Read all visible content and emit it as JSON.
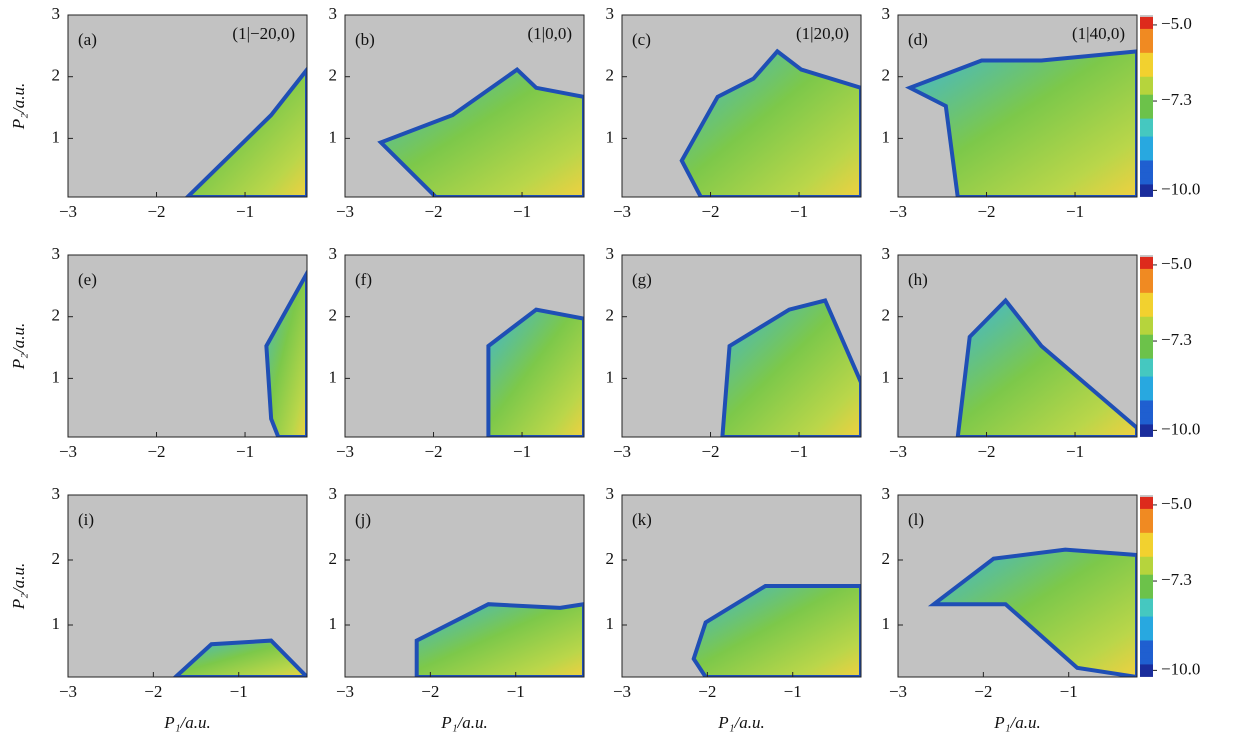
{
  "chart_data": [
    {
      "type": "heatmap",
      "panel_label": "(a)",
      "annotation": "(1|−20,0)",
      "ylabel": "P₂/a.u.",
      "xlim": [
        -3,
        -0.3
      ],
      "ylim": [
        0.05,
        3
      ],
      "xticks": [
        {
          "value": -3,
          "label": "−3"
        },
        {
          "value": -2,
          "label": "−2"
        },
        {
          "value": -1,
          "label": "−1"
        }
      ],
      "yticks": [
        1,
        2,
        3
      ]
    },
    {
      "type": "heatmap",
      "panel_label": "(b)",
      "annotation": "(1|0,0)",
      "xlim": [
        -3,
        -0.3
      ],
      "ylim": [
        0.05,
        3
      ],
      "xticks": [
        {
          "value": -3,
          "label": "−3"
        },
        {
          "value": -2,
          "label": "−2"
        },
        {
          "value": -1,
          "label": "−1"
        }
      ],
      "yticks": [
        1,
        2,
        3
      ]
    },
    {
      "type": "heatmap",
      "panel_label": "(c)",
      "annotation": "(1|20,0)",
      "xlim": [
        -3,
        -0.3
      ],
      "ylim": [
        0.05,
        3
      ],
      "xticks": [
        {
          "value": -3,
          "label": "−3"
        },
        {
          "value": -2,
          "label": "−2"
        },
        {
          "value": -1,
          "label": "−1"
        }
      ],
      "yticks": [
        1,
        2,
        3
      ]
    },
    {
      "type": "heatmap",
      "panel_label": "(d)",
      "annotation": "(1|40,0)",
      "xlim": [
        -3,
        -0.3
      ],
      "ylim": [
        0.05,
        3
      ],
      "xticks": [
        {
          "value": -3,
          "label": "−3"
        },
        {
          "value": -2,
          "label": "−2"
        },
        {
          "value": -1,
          "label": "−1"
        }
      ],
      "yticks": [
        1,
        2,
        3
      ],
      "colorbar": {
        "colormap": "jet",
        "lim": [
          -10.2,
          -4.7
        ],
        "ticks": [
          {
            "value": -5,
            "label": "−5.0"
          },
          {
            "value": -7.3,
            "label": "−7.3"
          },
          {
            "value": -10,
            "label": "−10.0"
          }
        ]
      }
    },
    {
      "type": "heatmap",
      "panel_label": "(e)",
      "ylabel": "P₂/a.u.",
      "xlim": [
        -3,
        -0.3
      ],
      "ylim": [
        0.05,
        3
      ],
      "xticks": [
        {
          "value": -3,
          "label": "−3"
        },
        {
          "value": -2,
          "label": "−2"
        },
        {
          "value": -1,
          "label": "−1"
        }
      ],
      "yticks": [
        1,
        2,
        3
      ]
    },
    {
      "type": "heatmap",
      "panel_label": "(f)",
      "xlim": [
        -3,
        -0.3
      ],
      "ylim": [
        0.05,
        3
      ],
      "xticks": [
        {
          "value": -3,
          "label": "−3"
        },
        {
          "value": -2,
          "label": "−2"
        },
        {
          "value": -1,
          "label": "−1"
        }
      ],
      "yticks": [
        1,
        2,
        3
      ]
    },
    {
      "type": "heatmap",
      "panel_label": "(g)",
      "xlim": [
        -3,
        -0.3
      ],
      "ylim": [
        0.05,
        3
      ],
      "xticks": [
        {
          "value": -3,
          "label": "−3"
        },
        {
          "value": -2,
          "label": "−2"
        },
        {
          "value": -1,
          "label": "−1"
        }
      ],
      "yticks": [
        1,
        2,
        3
      ]
    },
    {
      "type": "heatmap",
      "panel_label": "(h)",
      "xlim": [
        -3,
        -0.3
      ],
      "ylim": [
        0.05,
        3
      ],
      "xticks": [
        {
          "value": -3,
          "label": "−3"
        },
        {
          "value": -2,
          "label": "−2"
        },
        {
          "value": -1,
          "label": "−1"
        }
      ],
      "yticks": [
        1,
        2,
        3
      ],
      "colorbar": {
        "colormap": "jet",
        "lim": [
          -10.2,
          -4.7
        ],
        "ticks": [
          {
            "value": -5,
            "label": "−5.0"
          },
          {
            "value": -7.3,
            "label": "−7.3"
          },
          {
            "value": -10,
            "label": "−10.0"
          }
        ]
      }
    },
    {
      "type": "heatmap",
      "panel_label": "(i)",
      "ylabel": "P₂/a.u.",
      "xlabel": "P₁/a.u.",
      "xlim": [
        -3,
        -0.2
      ],
      "ylim": [
        0.2,
        3
      ],
      "xticks": [
        {
          "value": -3,
          "label": "−3"
        },
        {
          "value": -2,
          "label": "−2"
        },
        {
          "value": -1,
          "label": "−1"
        }
      ],
      "yticks": [
        1,
        2,
        3
      ]
    },
    {
      "type": "heatmap",
      "panel_label": "(j)",
      "xlabel": "P₁/a.u.",
      "xlim": [
        -3,
        -0.2
      ],
      "ylim": [
        0.2,
        3
      ],
      "xticks": [
        {
          "value": -3,
          "label": "−3"
        },
        {
          "value": -2,
          "label": "−2"
        },
        {
          "value": -1,
          "label": "−1"
        }
      ],
      "yticks": [
        1,
        2,
        3
      ]
    },
    {
      "type": "heatmap",
      "panel_label": "(k)",
      "xlabel": "P₁/a.u.",
      "xlim": [
        -3,
        -0.2
      ],
      "ylim": [
        0.2,
        3
      ],
      "xticks": [
        {
          "value": -3,
          "label": "−3"
        },
        {
          "value": -2,
          "label": "−2"
        },
        {
          "value": -1,
          "label": "−1"
        }
      ],
      "yticks": [
        1,
        2,
        3
      ]
    },
    {
      "type": "heatmap",
      "panel_label": "(l)",
      "xlabel": "P₁/a.u.",
      "xlim": [
        -3,
        -0.2
      ],
      "ylim": [
        0.2,
        3
      ],
      "xticks": [
        {
          "value": -3,
          "label": "−3"
        },
        {
          "value": -2,
          "label": "−2"
        },
        {
          "value": -1,
          "label": "−1"
        }
      ],
      "yticks": [
        1,
        2,
        3
      ],
      "colorbar": {
        "colormap": "jet",
        "lim": [
          -10.2,
          -4.7
        ],
        "ticks": [
          {
            "value": -5,
            "label": "−5.0"
          },
          {
            "value": -7.3,
            "label": "−7.3"
          },
          {
            "value": -10,
            "label": "−10.0"
          }
        ]
      }
    }
  ]
}
